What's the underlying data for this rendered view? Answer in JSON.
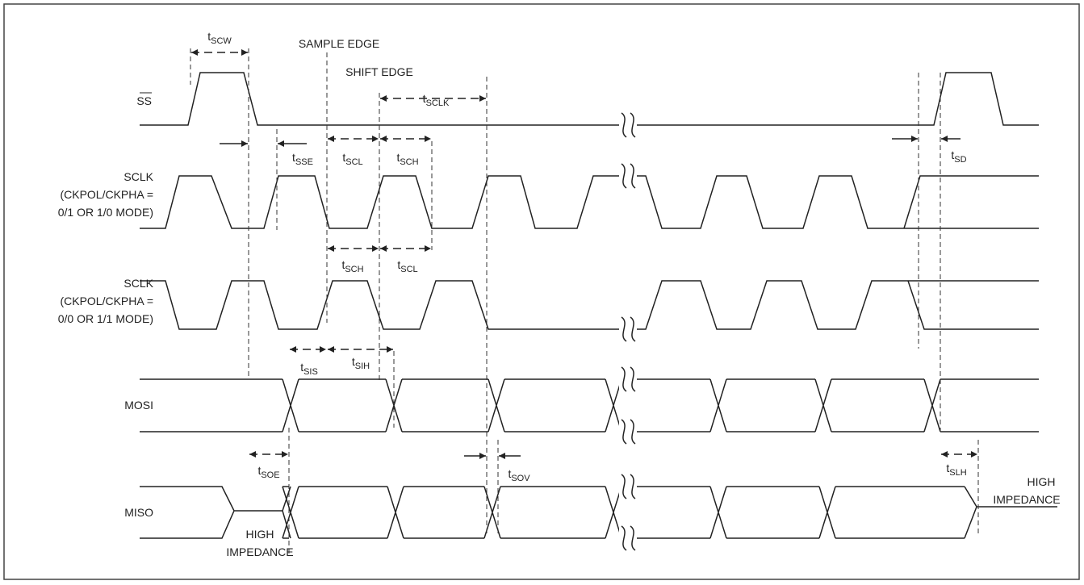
{
  "signals": [
    {
      "name": "SS"
    },
    {
      "name": "SCLK",
      "mode": [
        "(CKPOL/CKPHA =",
        "0/1 OR 1/0 MODE)"
      ]
    },
    {
      "name": "SCLK",
      "mode": [
        "(CKPOL/CKPHA =",
        "0/0 OR 1/1 MODE)"
      ]
    },
    {
      "name": "MOSI"
    },
    {
      "name": "MISO"
    }
  ],
  "annotations": {
    "sample_edge": "SAMPLE EDGE",
    "shift_edge": "SHIFT EDGE",
    "high_impedance_left": [
      "HIGH",
      "IMPEDANCE"
    ],
    "high_impedance_right": [
      "HIGH",
      "IMPEDANCE"
    ]
  },
  "timings": [
    {
      "t": "t",
      "sub": "SCW"
    },
    {
      "t": "t",
      "sub": "SCLK"
    },
    {
      "t": "t",
      "sub": "SSE"
    },
    {
      "t": "t",
      "sub": "SCL"
    },
    {
      "t": "t",
      "sub": "SCH"
    },
    {
      "t": "t",
      "sub": "SD"
    },
    {
      "t": "t",
      "sub": "SCH"
    },
    {
      "t": "t",
      "sub": "SCL"
    },
    {
      "t": "t",
      "sub": "SIS"
    },
    {
      "t": "t",
      "sub": "SIH"
    },
    {
      "t": "t",
      "sub": "SOE"
    },
    {
      "t": "t",
      "sub": "SOV"
    },
    {
      "t": "t",
      "sub": "SLH"
    }
  ]
}
